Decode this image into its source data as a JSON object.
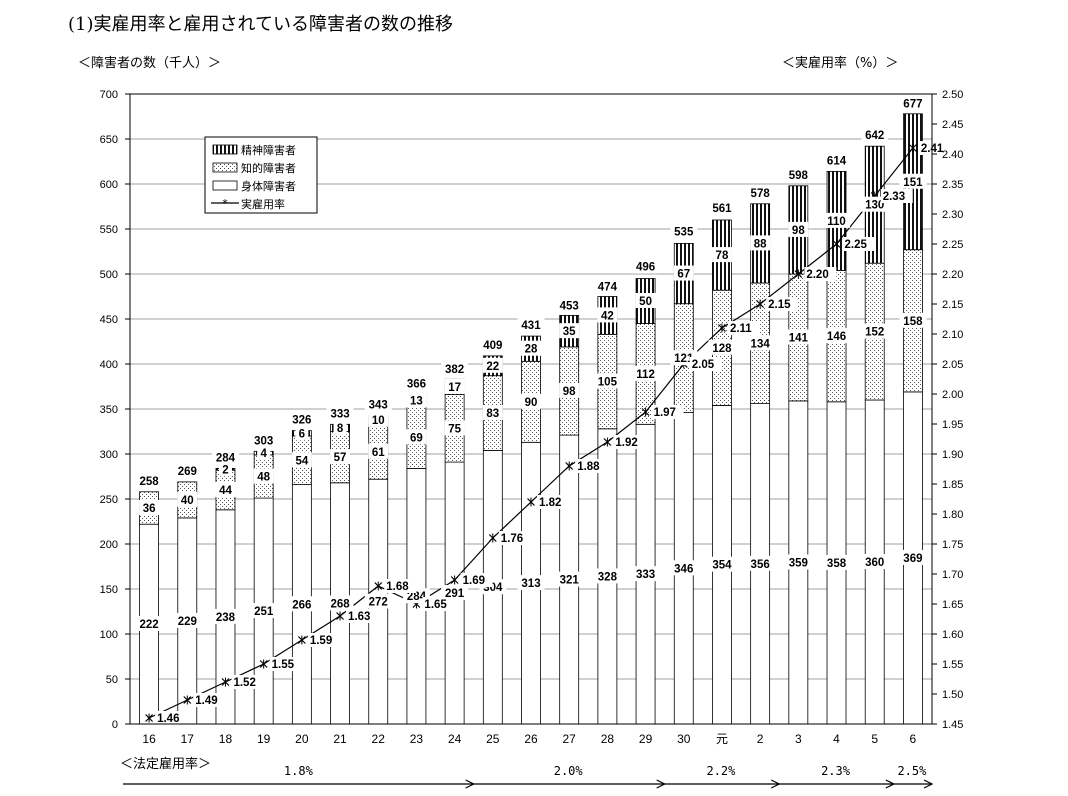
{
  "page": {
    "title": "(1)実雇用率と雇用されている障害者の数の推移",
    "left_axis_header": "＜障害者の数（千人）＞",
    "right_axis_header": "＜実雇用率（%）＞",
    "legal_rate_header": "＜法定雇用率＞"
  },
  "chart_data": {
    "type": "bar",
    "stacked": true,
    "categories": [
      "16",
      "17",
      "18",
      "19",
      "20",
      "21",
      "22",
      "23",
      "24",
      "25",
      "26",
      "27",
      "28",
      "29",
      "30",
      "元",
      "2",
      "3",
      "4",
      "5",
      "6"
    ],
    "series": [
      {
        "name": "身体障害者",
        "pattern": "blank",
        "values": [
          222,
          229,
          238,
          251,
          266,
          268,
          272,
          284,
          291,
          304,
          313,
          321,
          328,
          333,
          346,
          354,
          356,
          359,
          358,
          360,
          369
        ]
      },
      {
        "name": "知的障害者",
        "pattern": "dots",
        "values": [
          36,
          40,
          44,
          48,
          54,
          57,
          61,
          69,
          75,
          83,
          90,
          98,
          105,
          112,
          121,
          128,
          134,
          141,
          146,
          152,
          158
        ]
      },
      {
        "name": "精神障害者",
        "pattern": "vertical-stripes",
        "values": [
          null,
          null,
          2,
          4,
          6,
          8,
          10,
          13,
          17,
          22,
          28,
          35,
          42,
          50,
          67,
          78,
          88,
          98,
          110,
          130,
          151
        ]
      }
    ],
    "totals": [
      258,
      269,
      284,
      303,
      326,
      333,
      343,
      366,
      382,
      409,
      431,
      453,
      474,
      496,
      535,
      561,
      578,
      598,
      614,
      642,
      677
    ],
    "line": {
      "name": "実雇用率",
      "axis": "right",
      "values": [
        1.46,
        1.49,
        1.52,
        1.55,
        1.59,
        1.63,
        1.68,
        1.65,
        1.69,
        1.76,
        1.82,
        1.88,
        1.92,
        1.97,
        2.05,
        2.11,
        2.15,
        2.2,
        2.25,
        2.33,
        2.41
      ]
    },
    "ylim": [
      0,
      700
    ],
    "y_ticks": [
      0,
      50,
      100,
      150,
      200,
      250,
      300,
      350,
      400,
      450,
      500,
      550,
      600,
      650,
      700
    ],
    "y2lim": [
      1.45,
      2.5
    ],
    "y2_ticks": [
      "1.45",
      "1.50",
      "1.55",
      "1.60",
      "1.65",
      "1.70",
      "1.75",
      "1.80",
      "1.85",
      "1.90",
      "1.95",
      "2.00",
      "2.05",
      "2.10",
      "2.15",
      "2.20",
      "2.25",
      "2.30",
      "2.35",
      "2.40",
      "2.45",
      "2.50"
    ],
    "grid": true,
    "legend_position": "top-left",
    "legal_rate_periods": [
      {
        "label": "1.8%",
        "from": "16",
        "to": "24"
      },
      {
        "label": "2.0%",
        "from": "25",
        "to": "29"
      },
      {
        "label": "2.2%",
        "from": "30",
        "to": "2"
      },
      {
        "label": "2.3%",
        "from": "3",
        "to": "5"
      },
      {
        "label": "2.5%",
        "from": "6",
        "to": "6"
      }
    ]
  }
}
